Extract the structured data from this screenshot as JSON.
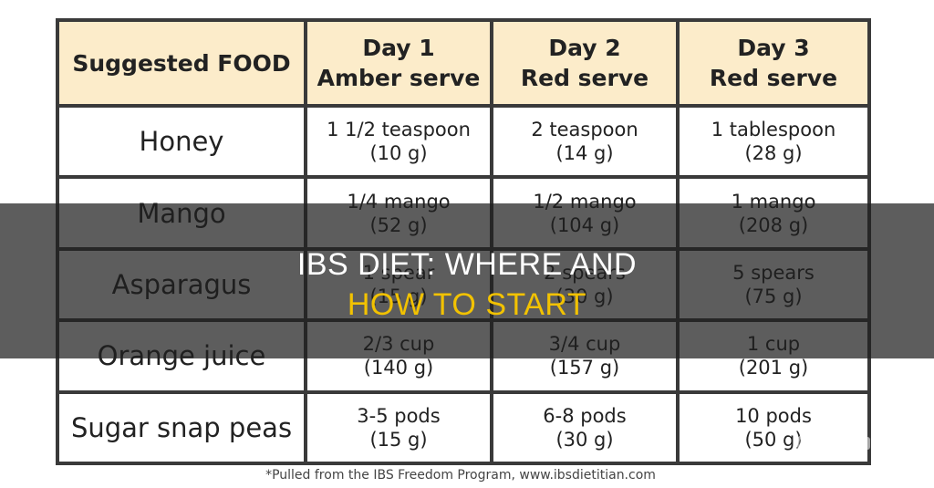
{
  "headline": {
    "line1": "IBS DIET: WHERE AND",
    "line2": "HOW TO START",
    "line2_color": "#f2c200"
  },
  "table": {
    "header_bg": "#fcecca",
    "columns": [
      {
        "line1": "Suggested FOOD",
        "line2": ""
      },
      {
        "line1": "Day 1",
        "line2": "Amber serve"
      },
      {
        "line1": "Day 2",
        "line2": "Red serve"
      },
      {
        "line1": "Day 3",
        "line2": "Red serve"
      }
    ],
    "rows": [
      {
        "food": "Honey",
        "day1": [
          "1 1/2 teaspoon",
          "(10 g)"
        ],
        "day2": [
          "2 teaspoon",
          "(14 g)"
        ],
        "day3": [
          "1 tablespoon",
          "(28 g)"
        ]
      },
      {
        "food": "Mango",
        "day1": [
          "1/4 mango",
          "(52 g)"
        ],
        "day2": [
          "1/2 mango",
          "(104 g)"
        ],
        "day3": [
          "1 mango",
          "(208 g)"
        ]
      },
      {
        "food": "Asparagus",
        "day1": [
          "1 spear",
          "(15 g)"
        ],
        "day2": [
          "2 spears",
          "(30 g)"
        ],
        "day3": [
          "5 spears",
          "(75 g)"
        ]
      },
      {
        "food": "Orange juice",
        "day1": [
          "2/3 cup",
          "(140 g)"
        ],
        "day2": [
          "3/4 cup",
          "(157 g)"
        ],
        "day3": [
          "1 cup",
          "(201 g)"
        ]
      },
      {
        "food": "Sugar snap peas",
        "day1": [
          "3-5 pods",
          "(15 g)"
        ],
        "day2": [
          "6-8 pods",
          "(30 g)"
        ],
        "day3": [
          "10 pods",
          "(50 g)"
        ]
      }
    ]
  },
  "footnote": "*Pulled from the IBS Freedom Program, www.ibsdietitian.com",
  "watermark": {
    "icon": "logo-watermark-icon"
  }
}
